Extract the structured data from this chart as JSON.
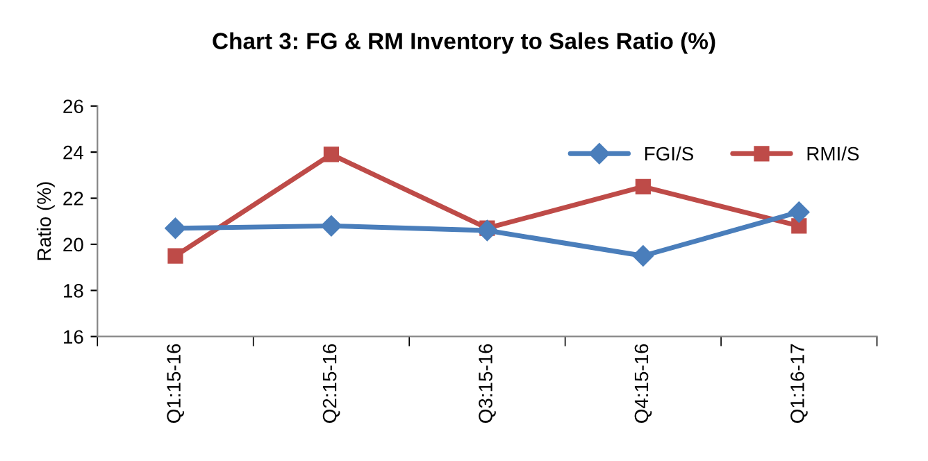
{
  "chart_data": {
    "type": "line",
    "title": "Chart 3: FG & RM Inventory to Sales Ratio (%)",
    "ylabel": "Ratio (%)",
    "categories": [
      "Q1:15-16",
      "Q2:15-16",
      "Q3:15-16",
      "Q4:15-16",
      "Q1:16-17"
    ],
    "series": [
      {
        "name": "FGI/S",
        "color": "#4a7ebb",
        "marker": "diamond",
        "values": [
          20.7,
          20.8,
          20.6,
          19.5,
          21.4
        ]
      },
      {
        "name": "RMI/S",
        "color": "#be4b48",
        "marker": "square",
        "values": [
          19.5,
          23.9,
          20.7,
          22.5,
          20.8
        ]
      }
    ],
    "ylim": [
      16,
      26
    ],
    "yticks": [
      16,
      18,
      20,
      22,
      24,
      26
    ],
    "grid": false,
    "legend": "top right",
    "line_style": "solid"
  }
}
